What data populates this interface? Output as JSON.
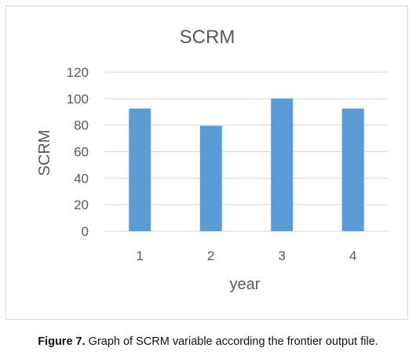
{
  "chart_data": {
    "type": "bar",
    "title": "SCRM",
    "xlabel": "year",
    "ylabel": "SCRM",
    "categories": [
      "1",
      "2",
      "3",
      "4"
    ],
    "values": [
      92.5,
      79.5,
      100,
      92.5
    ],
    "ylim": [
      0,
      120
    ],
    "yticks": [
      "0",
      "20",
      "40",
      "60",
      "80",
      "100",
      "120"
    ],
    "grid": true,
    "legend": "none",
    "bar_color": "#5b9bd5",
    "grid_color": "#d9d9d9"
  },
  "caption": {
    "label": "Figure 7.",
    "text": " Graph of SCRM variable according the frontier output file."
  }
}
